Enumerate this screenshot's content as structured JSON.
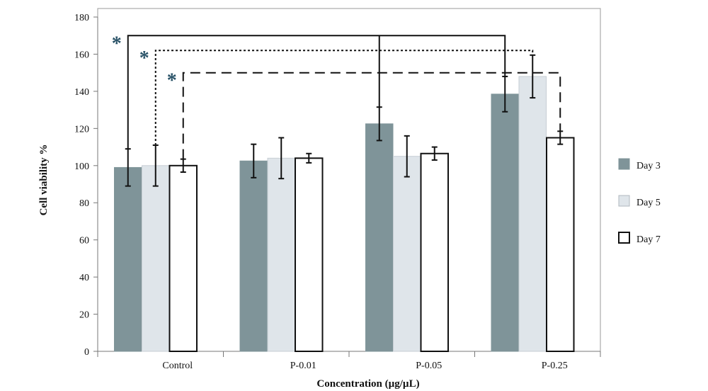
{
  "chart_data": {
    "type": "bar",
    "xlabel": "Concentration (µg/µL)",
    "ylabel": "Cell viability %",
    "ylim": [
      0,
      180
    ],
    "yticks": [
      0,
      20,
      40,
      60,
      80,
      100,
      120,
      140,
      160,
      180
    ],
    "categories": [
      "Control",
      "P-0.01",
      "P-0.05",
      "P-0.25"
    ],
    "series": [
      {
        "name": "Day 3",
        "color": "#7f9499",
        "values": [
          99,
          102.5,
          122.5,
          138.5
        ],
        "errors": [
          10,
          9,
          9,
          9.5
        ]
      },
      {
        "name": "Day 5",
        "color": "#dfe5ea",
        "values": [
          100,
          104,
          105,
          148
        ],
        "errors": [
          11,
          11,
          11,
          11.5
        ]
      },
      {
        "name": "Day 7",
        "color": "#ffffff",
        "values": [
          100,
          104,
          106.5,
          115
        ],
        "errors": [
          3.5,
          2.5,
          3.5,
          3.5
        ]
      }
    ],
    "legend_position": "right",
    "grid": false,
    "significance": [
      {
        "label": "*",
        "from": {
          "category": "Control",
          "series": "Day 3"
        },
        "to": {
          "category": "P-0.25",
          "series": "Day 3"
        },
        "style": "solid",
        "level": 170
      },
      {
        "label": "*",
        "from": {
          "category": "Control",
          "series": "Day 5"
        },
        "to": {
          "category": "P-0.25",
          "series": "Day 5"
        },
        "style": "dotted",
        "level": 162
      },
      {
        "label": "*",
        "from": {
          "category": "Control",
          "series": "Day 7"
        },
        "to": {
          "category": "P-0.25",
          "series": "Day 7"
        },
        "style": "dashed",
        "level": 150
      }
    ],
    "extra_connectors": [
      {
        "category": "P-0.05",
        "series": "Day 3",
        "to_level": 170
      }
    ]
  }
}
